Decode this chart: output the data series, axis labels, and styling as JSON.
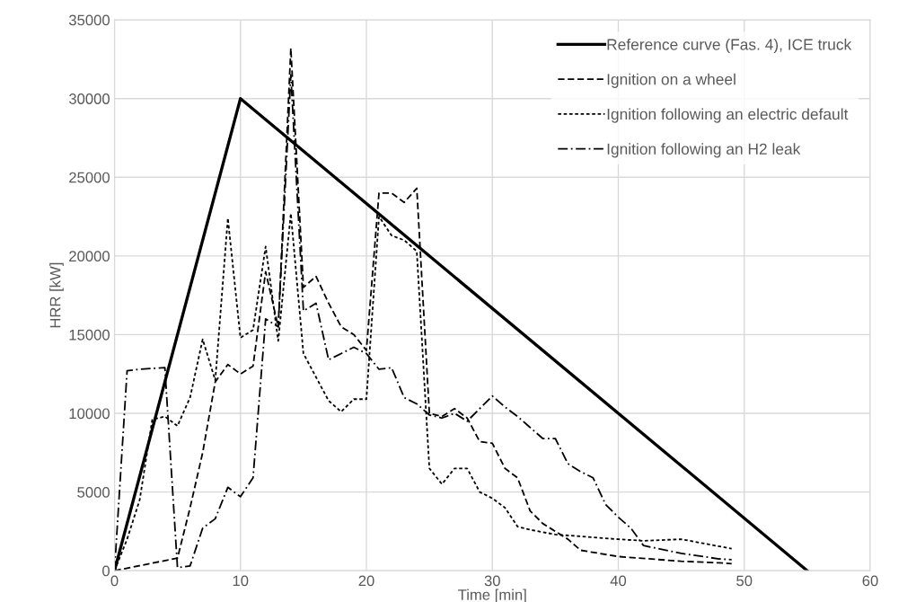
{
  "chart_data": {
    "type": "line",
    "xlabel": "Time [min]",
    "ylabel": "HRR [kW]",
    "xlim": [
      0,
      60
    ],
    "xticks": [
      0,
      10,
      20,
      30,
      40,
      50,
      60
    ],
    "ylim": [
      0,
      35000
    ],
    "yticks": [
      0,
      5000,
      10000,
      15000,
      20000,
      25000,
      30000,
      35000
    ],
    "grid": true,
    "legend": "top right",
    "marker": "none",
    "series": [
      {
        "name": "Reference curve (Fas. 4), ICE truck",
        "color": "#000000",
        "line_style": "solid",
        "x": [
          0,
          10,
          55
        ],
        "values": [
          0,
          30000,
          0
        ]
      },
      {
        "name": "Ignition on a wheel",
        "color": "#000000",
        "line_style": "dashed",
        "x": [
          0,
          5,
          6,
          7,
          8,
          9,
          10,
          11,
          12,
          13,
          14,
          15,
          16,
          17,
          18,
          19,
          20,
          21,
          22,
          23,
          24,
          25,
          26,
          27,
          28,
          29,
          30,
          31,
          32,
          33,
          34,
          35,
          36,
          37,
          40,
          45,
          48,
          49
        ],
        "values": [
          0,
          800,
          4000,
          7500,
          12000,
          13100,
          12500,
          13000,
          19000,
          15500,
          33200,
          18000,
          18700,
          17000,
          15500,
          15000,
          14000,
          24000,
          24000,
          23400,
          24300,
          10000,
          9800,
          10300,
          9700,
          8200,
          8100,
          6500,
          5900,
          3800,
          3000,
          2500,
          2000,
          1300,
          900,
          600,
          500,
          450
        ]
      },
      {
        "name": "Ignition following an electric default",
        "color": "#000000",
        "line_style": "dotted",
        "x": [
          0,
          1,
          2,
          3,
          4,
          5,
          6,
          7,
          8,
          9,
          10,
          11,
          12,
          13,
          14,
          15,
          16,
          17,
          18,
          19,
          20,
          21,
          22,
          23,
          24,
          25,
          26,
          27,
          28,
          29,
          30,
          31,
          32,
          33,
          35,
          40,
          42,
          45,
          49
        ],
        "values": [
          0,
          2000,
          4500,
          9600,
          9800,
          9200,
          11000,
          14700,
          12100,
          22400,
          14800,
          15300,
          20600,
          14600,
          22700,
          13800,
          12300,
          10800,
          10100,
          10900,
          10900,
          22500,
          21300,
          21000,
          20300,
          6500,
          5500,
          6500,
          6500,
          5000,
          4600,
          4000,
          2800,
          2600,
          2300,
          2000,
          1900,
          2000,
          1400
        ]
      },
      {
        "name": "Ignition following an H2 leak",
        "color": "#000000",
        "line_style": "dashdot",
        "x": [
          0,
          1,
          2,
          4,
          5,
          6,
          7,
          8,
          9,
          10,
          11,
          12,
          13,
          14,
          15,
          16,
          17,
          18,
          19,
          20,
          21,
          22,
          23,
          24,
          25,
          26,
          27,
          28,
          29,
          30,
          31,
          32,
          33,
          34,
          35,
          36,
          37,
          38,
          39,
          40,
          41,
          42,
          45,
          48,
          49
        ],
        "values": [
          0,
          12700,
          12800,
          12900,
          200,
          300,
          2700,
          3300,
          5300,
          4700,
          5900,
          16000,
          15500,
          31500,
          16500,
          17000,
          13400,
          13800,
          14200,
          13800,
          12800,
          12900,
          11000,
          10600,
          9900,
          9700,
          10000,
          9500,
          10300,
          11100,
          10400,
          9800,
          9100,
          8400,
          8400,
          6800,
          6300,
          5900,
          4200,
          3400,
          2700,
          1600,
          1100,
          750,
          700
        ]
      }
    ]
  }
}
